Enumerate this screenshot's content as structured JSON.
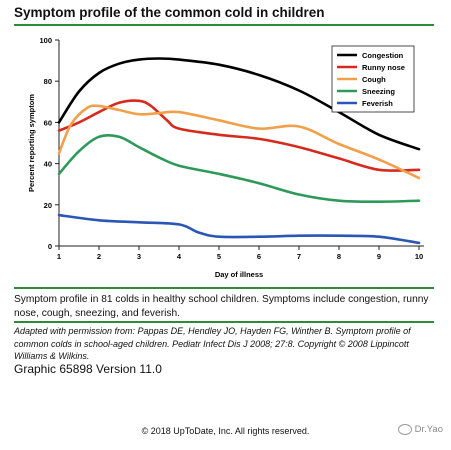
{
  "header": {
    "title": "Symptom profile of the common cold in children"
  },
  "chart_data": {
    "type": "line",
    "title": "Symptom profile of the common cold in children",
    "xlabel": "Day of illness",
    "ylabel": "Percent reporting symptom",
    "xlim": [
      1,
      10
    ],
    "ylim": [
      0,
      100
    ],
    "x_ticks": [
      1,
      2,
      3,
      4,
      5,
      6,
      7,
      8,
      9,
      10
    ],
    "y_ticks": [
      0,
      20,
      40,
      60,
      80,
      100
    ],
    "grid": false,
    "legend_position": "top-right",
    "series": [
      {
        "name": "Congestion",
        "color": "#000000",
        "points": [
          [
            1,
            60
          ],
          [
            1.5,
            75
          ],
          [
            2,
            84
          ],
          [
            2.5,
            88.5
          ],
          [
            3,
            90.5
          ],
          [
            3.5,
            91
          ],
          [
            4,
            90.5
          ],
          [
            5,
            88
          ],
          [
            6,
            83
          ],
          [
            7,
            75.5
          ],
          [
            8,
            65
          ],
          [
            9,
            54
          ],
          [
            10,
            47
          ]
        ]
      },
      {
        "name": "Runny nose",
        "color": "#d52b1e",
        "points": [
          [
            1,
            56
          ],
          [
            1.5,
            60
          ],
          [
            2,
            65
          ],
          [
            2.5,
            69.5
          ],
          [
            3,
            70.5
          ],
          [
            3.3,
            68
          ],
          [
            3.7,
            61
          ],
          [
            4,
            57
          ],
          [
            5,
            54
          ],
          [
            6,
            52
          ],
          [
            7,
            48
          ],
          [
            8,
            42.5
          ],
          [
            9,
            37
          ],
          [
            10,
            37
          ]
        ]
      },
      {
        "name": "Cough",
        "color": "#f0a04b",
        "points": [
          [
            1,
            45
          ],
          [
            1.3,
            59
          ],
          [
            1.7,
            67
          ],
          [
            2,
            68
          ],
          [
            2.5,
            66
          ],
          [
            3,
            64
          ],
          [
            3.5,
            64.5
          ],
          [
            4,
            65
          ],
          [
            5,
            61
          ],
          [
            6,
            57
          ],
          [
            7,
            58
          ],
          [
            8,
            49.5
          ],
          [
            9,
            42
          ],
          [
            10,
            33
          ]
        ]
      },
      {
        "name": "Sneezing",
        "color": "#2e9a5a",
        "points": [
          [
            1,
            35
          ],
          [
            1.5,
            46
          ],
          [
            2,
            53
          ],
          [
            2.5,
            53
          ],
          [
            3,
            48
          ],
          [
            3.5,
            43
          ],
          [
            4,
            39
          ],
          [
            5,
            35
          ],
          [
            6,
            30.5
          ],
          [
            7,
            25
          ],
          [
            8,
            22
          ],
          [
            9,
            21.5
          ],
          [
            10,
            22
          ]
        ]
      },
      {
        "name": "Feverish",
        "color": "#2a56b5",
        "points": [
          [
            1,
            15
          ],
          [
            2,
            12.5
          ],
          [
            3,
            11.5
          ],
          [
            4,
            10.5
          ],
          [
            4.5,
            6.5
          ],
          [
            5,
            4.5
          ],
          [
            6,
            4.5
          ],
          [
            7,
            5
          ],
          [
            8,
            5
          ],
          [
            9,
            4.5
          ],
          [
            10,
            1.5
          ]
        ]
      }
    ]
  },
  "caption": "Symptom profile in 81 colds in healthy school children. Symptoms include congestion, runny nose, cough, sneezing, and feverish.",
  "credit": "Adapted with permission from: Pappas DE, Hendley JO, Hayden FG, Winther B. Symptom profile of common colds in school-aged children. Pediatr Infect Dis J 2008; 27:8. Copyright © 2008 Lippincott Williams & Wilkins.",
  "graphic_id": "Graphic 65898 Version 11.0",
  "copyright": "© 2018 UpToDate, Inc. All rights reserved.",
  "watermark": "Dr.Yao",
  "colors": {
    "accent_rule": "#2e8b3a"
  }
}
